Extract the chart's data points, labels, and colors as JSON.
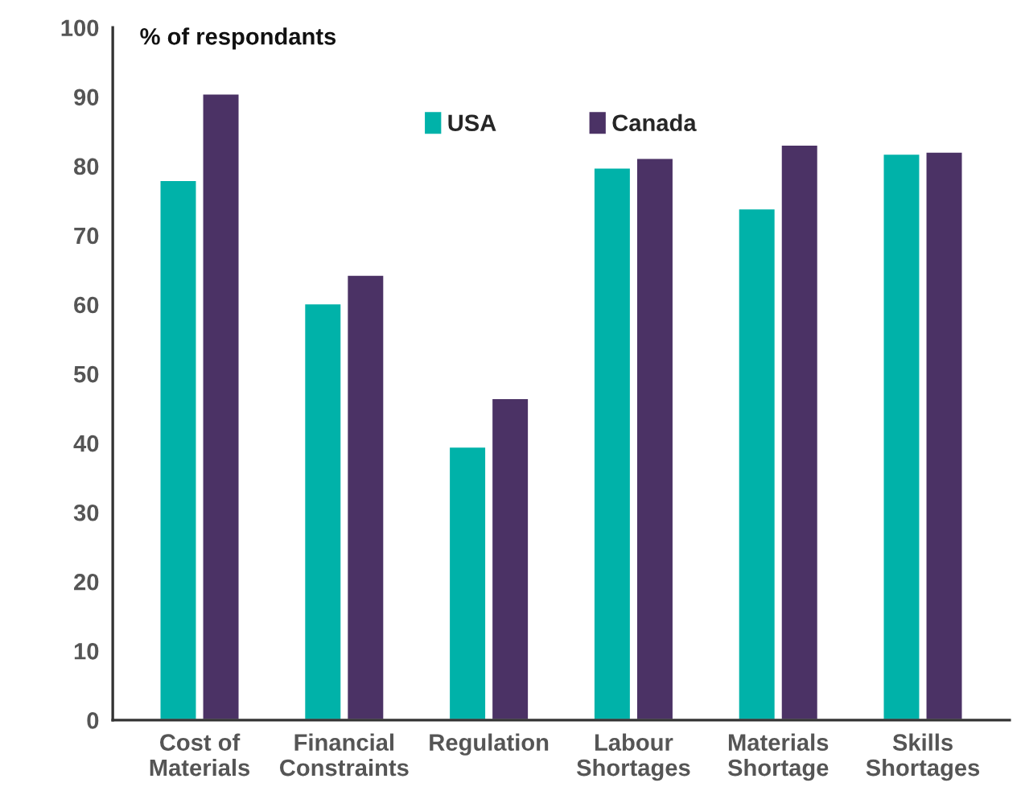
{
  "chart_data": {
    "type": "bar",
    "ylabel": "% of respondants",
    "categories": [
      "Cost of\nMaterials",
      "Financial\nConstraints",
      "Regulation",
      "Labour\nShortages",
      "Materials\nShortage",
      "Skills\nShortages"
    ],
    "series": [
      {
        "name": "USA",
        "color": "#00b2a9",
        "values": [
          78,
          60.2,
          39.5,
          79.8,
          73.9,
          81.8
        ]
      },
      {
        "name": "Canada",
        "color": "#4b3265",
        "values": [
          90.5,
          64.3,
          46.5,
          81.2,
          83.1,
          82.1
        ]
      }
    ],
    "ylim": [
      0,
      100
    ],
    "yticks": [
      0,
      10,
      20,
      30,
      40,
      50,
      60,
      70,
      80,
      90,
      100
    ],
    "grid": false,
    "legend": "top"
  }
}
